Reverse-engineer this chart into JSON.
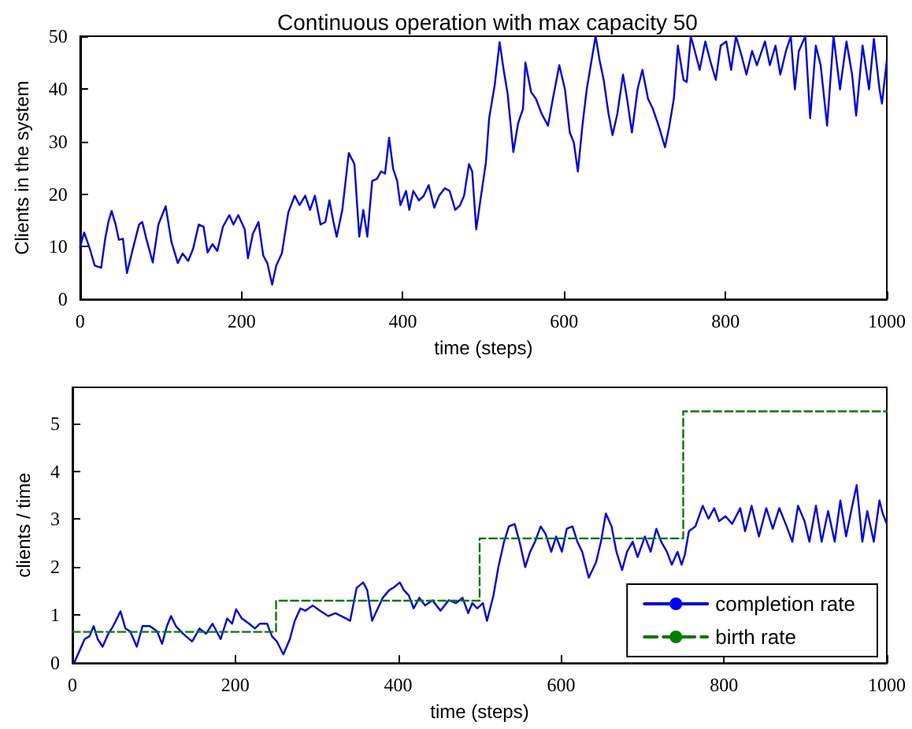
{
  "chart_data": [
    {
      "type": "line",
      "title": "Continuous operation with max capacity 50",
      "xlabel": "time (steps)",
      "ylabel": "Clients in the system",
      "xlim": [
        0,
        1000
      ],
      "xticks": [
        0,
        200,
        400,
        600,
        800,
        1000
      ],
      "ylim": [
        0,
        50
      ],
      "yticks": [
        0,
        10,
        20,
        30,
        40,
        50
      ],
      "grid": false,
      "marker": "none",
      "series": [
        {
          "color": "#0000ff",
          "x": [
            0,
            5,
            12,
            18,
            26,
            31,
            35,
            39,
            44,
            48,
            53,
            58,
            65,
            73,
            77,
            82,
            90,
            97,
            106,
            113,
            121,
            127,
            134,
            140,
            147,
            153,
            158,
            164,
            170,
            177,
            185,
            190,
            196,
            204,
            208,
            214,
            221,
            227,
            232,
            238,
            243,
            250,
            258,
            266,
            272,
            279,
            285,
            291,
            298,
            304,
            309,
            314,
            318,
            325,
            333,
            340,
            346,
            351,
            356,
            362,
            368,
            373,
            378,
            383,
            388,
            393,
            397,
            404,
            408,
            413,
            420,
            426,
            432,
            439,
            445,
            452,
            458,
            465,
            471,
            476,
            482,
            486,
            491,
            497,
            503,
            507,
            514,
            520,
            525,
            530,
            537,
            543,
            549,
            552,
            559,
            565,
            572,
            580,
            586,
            594,
            601,
            607,
            612,
            617,
            623,
            628,
            633,
            639,
            644,
            649,
            655,
            660,
            666,
            673,
            678,
            684,
            691,
            697,
            704,
            710,
            718,
            725,
            730,
            736,
            741,
            748,
            752,
            757,
            762,
            768,
            775,
            781,
            788,
            794,
            801,
            807,
            813,
            820,
            826,
            833,
            839,
            849,
            855,
            862,
            868,
            875,
            881,
            886,
            891,
            899,
            905,
            912,
            918,
            926,
            934,
            942,
            950,
            957,
            962,
            970,
            978,
            984,
            991,
            994,
            1000
          ],
          "values": [
            10,
            12.7,
            9.6,
            6.4,
            6,
            11.5,
            14.7,
            16.8,
            14.2,
            11.3,
            11.5,
            5,
            9.4,
            14.2,
            14.7,
            11.5,
            7,
            14.2,
            17.7,
            11,
            6.9,
            8.7,
            7.3,
            9.6,
            14.2,
            13.8,
            8.9,
            10.5,
            9.2,
            13.8,
            16,
            14.2,
            16,
            13.3,
            7.8,
            12.4,
            14.7,
            8.3,
            6.9,
            2.8,
            6.4,
            8.7,
            16.5,
            19.7,
            17.9,
            19.7,
            17,
            19.7,
            14.2,
            14.7,
            18.8,
            14.7,
            11.9,
            17,
            27.8,
            25.7,
            11.9,
            17,
            11.9,
            22.5,
            22.9,
            24.3,
            23.9,
            30.7,
            24.8,
            22.5,
            17.9,
            20.6,
            17,
            20.6,
            18.8,
            19.7,
            21.7,
            17.4,
            19.7,
            21.1,
            20.6,
            17,
            17.9,
            19.7,
            25.7,
            24.3,
            13.3,
            19.7,
            26,
            34.4,
            40.8,
            48.9,
            43.6,
            39,
            28,
            33.5,
            36.2,
            45,
            39.4,
            38.1,
            35.3,
            33,
            38.1,
            44.5,
            39.9,
            31.7,
            29.8,
            24.3,
            33.5,
            39.9,
            44.5,
            50,
            45.4,
            41.7,
            35.3,
            31.2,
            35.3,
            42.7,
            38.1,
            31.7,
            39.9,
            43.6,
            38.1,
            36.2,
            32.6,
            28.9,
            32.6,
            38.1,
            48.2,
            41.7,
            41.3,
            50,
            47.2,
            43.6,
            49,
            45.4,
            41.7,
            48.2,
            49,
            43.6,
            50,
            46.3,
            42.7,
            47.2,
            44.5,
            49,
            44.5,
            48.2,
            42.7,
            47.2,
            50,
            39.9,
            47.2,
            50,
            34.4,
            48.2,
            44.5,
            33,
            50,
            39.9,
            49,
            42.7,
            34.9,
            48.2,
            39.9,
            49.5,
            39.9,
            37.2,
            45.4
          ]
        }
      ]
    },
    {
      "type": "line",
      "xlabel": "time (steps)",
      "ylabel": "clients / time",
      "xlim": [
        0,
        1000
      ],
      "xticks": [
        0,
        200,
        400,
        600,
        800,
        1000
      ],
      "ylim": [
        0,
        5.75
      ],
      "yticks": [
        0,
        1,
        2,
        3,
        4,
        5
      ],
      "grid": false,
      "marker": "none",
      "legend": "bottom right",
      "series": [
        {
          "name": "completion rate",
          "color": "#0000ff",
          "line_style": "solid",
          "x": [
            2,
            8,
            15,
            21,
            26,
            31,
            37,
            44,
            50,
            59,
            65,
            71,
            79,
            86,
            95,
            104,
            110,
            116,
            121,
            127,
            136,
            147,
            156,
            164,
            172,
            182,
            190,
            196,
            201,
            208,
            217,
            224,
            230,
            239,
            245,
            251,
            259,
            267,
            273,
            280,
            286,
            295,
            304,
            314,
            323,
            336,
            341,
            349,
            357,
            362,
            368,
            375,
            381,
            389,
            394,
            402,
            407,
            413,
            419,
            426,
            433,
            442,
            452,
            462,
            471,
            479,
            486,
            491,
            497,
            504,
            509,
            517,
            523,
            530,
            536,
            543,
            549,
            556,
            562,
            568,
            575,
            581,
            588,
            594,
            601,
            607,
            614,
            620,
            626,
            634,
            643,
            649,
            655,
            662,
            668,
            675,
            681,
            688,
            694,
            703,
            710,
            717,
            723,
            730,
            736,
            743,
            748,
            752,
            757,
            765,
            774,
            781,
            788,
            794,
            802,
            810,
            820,
            826,
            834,
            843,
            852,
            860,
            868,
            877,
            884,
            891,
            899,
            905,
            913,
            920,
            928,
            936,
            943,
            950,
            957,
            963,
            970,
            976,
            984,
            991,
            995,
            1000
          ],
          "values": [
            0,
            0.23,
            0.5,
            0.56,
            0.77,
            0.5,
            0.34,
            0.61,
            0.77,
            1.08,
            0.72,
            0.66,
            0.34,
            0.77,
            0.77,
            0.66,
            0.4,
            0.77,
            0.98,
            0.77,
            0.61,
            0.45,
            0.72,
            0.61,
            0.82,
            0.5,
            0.93,
            0.82,
            1.12,
            0.93,
            0.82,
            0.72,
            0.82,
            0.82,
            0.56,
            0.45,
            0.18,
            0.5,
            0.88,
            1.14,
            1.09,
            1.2,
            1.09,
            0.98,
            1.04,
            0.93,
            0.88,
            1.57,
            1.68,
            1.52,
            0.88,
            1.14,
            1.36,
            1.52,
            1.57,
            1.68,
            1.52,
            1.41,
            1.14,
            1.36,
            1.2,
            1.31,
            1.09,
            1.31,
            1.25,
            1.36,
            1.04,
            1.25,
            1.14,
            1.25,
            0.88,
            1.41,
            2.0,
            2.53,
            2.85,
            2.9,
            2.53,
            2.0,
            2.32,
            2.53,
            2.85,
            2.69,
            2.32,
            2.64,
            2.32,
            2.8,
            2.85,
            2.53,
            2.32,
            1.78,
            2.1,
            2.53,
            3.12,
            2.85,
            2.32,
            1.94,
            2.32,
            2.53,
            2.21,
            2.64,
            2.32,
            2.8,
            2.53,
            2.32,
            2.05,
            2.32,
            2.05,
            2.26,
            2.75,
            2.85,
            3.28,
            3.01,
            3.23,
            2.96,
            3.06,
            2.9,
            3.23,
            2.75,
            3.28,
            2.64,
            3.23,
            2.8,
            3.23,
            2.85,
            2.53,
            3.28,
            2.96,
            2.53,
            3.28,
            2.53,
            3.17,
            2.53,
            3.39,
            2.64,
            3.23,
            3.71,
            2.53,
            3.17,
            2.53,
            3.39,
            3.12,
            2.9
          ]
        },
        {
          "name": "birth rate",
          "type": "step",
          "color": "#008000",
          "line_style": "dashed",
          "x": [
            0,
            250,
            500,
            750,
            1000
          ],
          "values": [
            0.65,
            1.3,
            2.6,
            5.25,
            5.25
          ]
        }
      ]
    }
  ]
}
